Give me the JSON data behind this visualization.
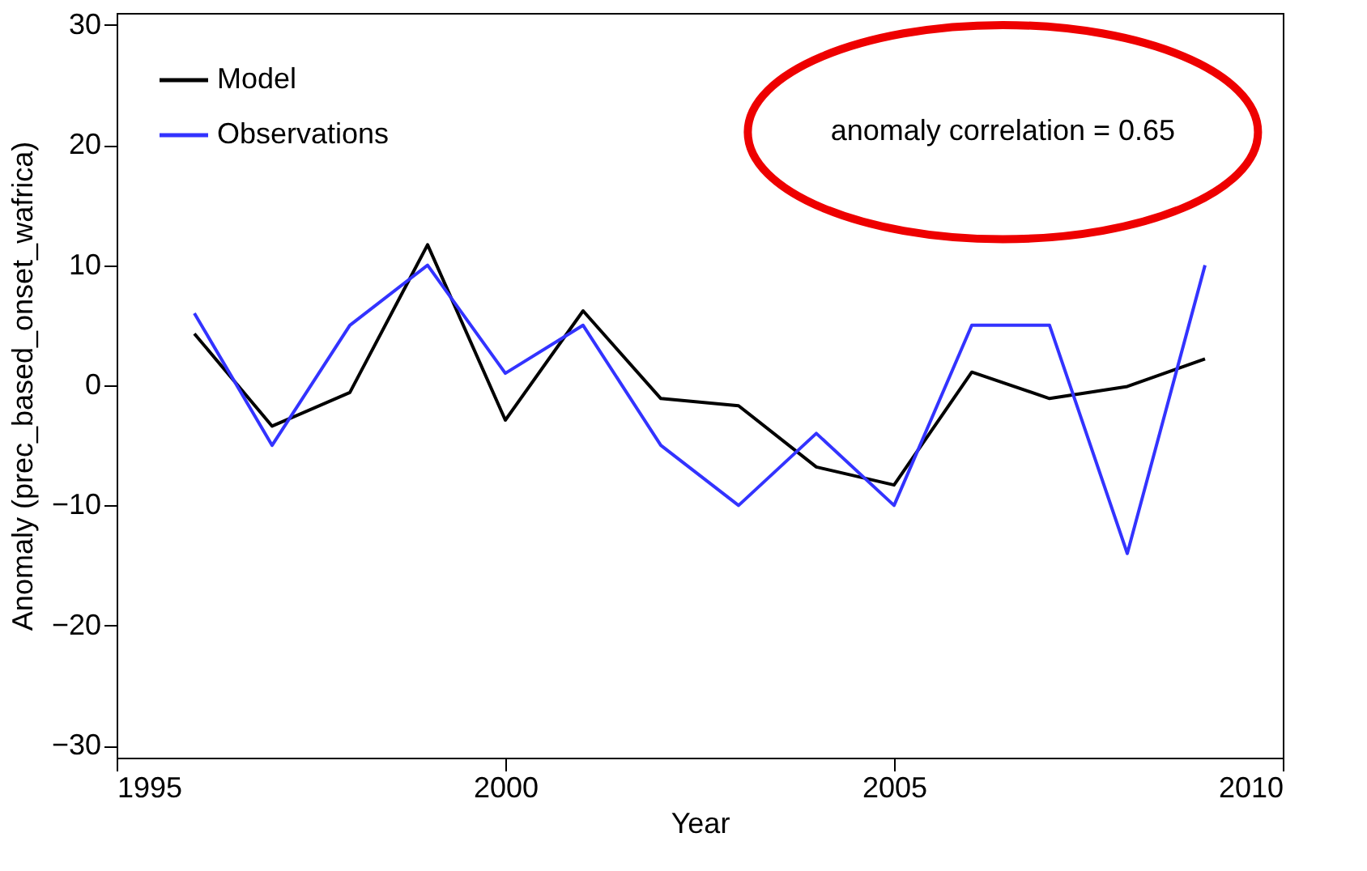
{
  "chart_data": {
    "type": "line",
    "xlabel": "Year",
    "ylabel": "Anomaly (prec_based_onset_wafrica)",
    "x": [
      1996,
      1997,
      1998,
      1999,
      2000,
      2001,
      2002,
      2003,
      2004,
      2005,
      2006,
      2007,
      2008,
      2009
    ],
    "series": [
      {
        "name": "Model",
        "color": "#000000",
        "values": [
          4.3,
          -3.4,
          -0.6,
          11.7,
          -2.9,
          6.2,
          -1.1,
          -1.7,
          -6.8,
          -8.3,
          1.1,
          -1.1,
          -0.1,
          2.2
        ]
      },
      {
        "name": "Observations",
        "color": "#3333ff",
        "values": [
          6,
          -5,
          5,
          10,
          1,
          5,
          -5,
          -10,
          -4,
          -10,
          5,
          5,
          -14,
          10
        ]
      }
    ],
    "xlim": [
      1995,
      2010
    ],
    "xticks": [
      1995,
      2000,
      2005,
      2010
    ],
    "ylim": [
      -31,
      31
    ],
    "yticks": [
      -30,
      -20,
      -10,
      0,
      10,
      20,
      30
    ],
    "annotations": [
      "anomaly correlation = 0.65"
    ],
    "grid": false,
    "legend": "top left",
    "marker": "none",
    "line_style": "solid"
  }
}
